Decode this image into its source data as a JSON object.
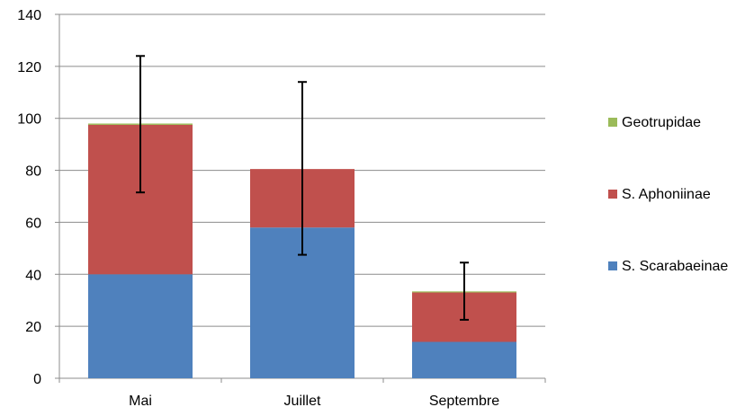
{
  "chart_data": {
    "type": "bar",
    "stacked": true,
    "categories": [
      "Mai",
      "Juillet",
      "Septembre"
    ],
    "series": [
      {
        "name": "S. Scarabaeinae",
        "values": [
          40,
          58,
          14
        ],
        "color": "#4f81bd"
      },
      {
        "name": "S. Aphoniinae",
        "values": [
          57.5,
          22.5,
          19
        ],
        "color": "#c0504d"
      },
      {
        "name": "Geotrupidae",
        "values": [
          0.5,
          0,
          0.3
        ],
        "color": "#9bbb59"
      }
    ],
    "error_bars": [
      {
        "low": 71.5,
        "high": 124
      },
      {
        "low": 47.5,
        "high": 114
      },
      {
        "low": 22.5,
        "high": 44.5
      }
    ],
    "ylim": [
      0,
      140
    ],
    "yticks": [
      0,
      20,
      40,
      60,
      80,
      100,
      120,
      140
    ],
    "grid": true,
    "legend_position": "right",
    "legend_order": [
      "Geotrupidae",
      "S. Aphoniinae",
      "S. Scarabaeinae"
    ]
  }
}
